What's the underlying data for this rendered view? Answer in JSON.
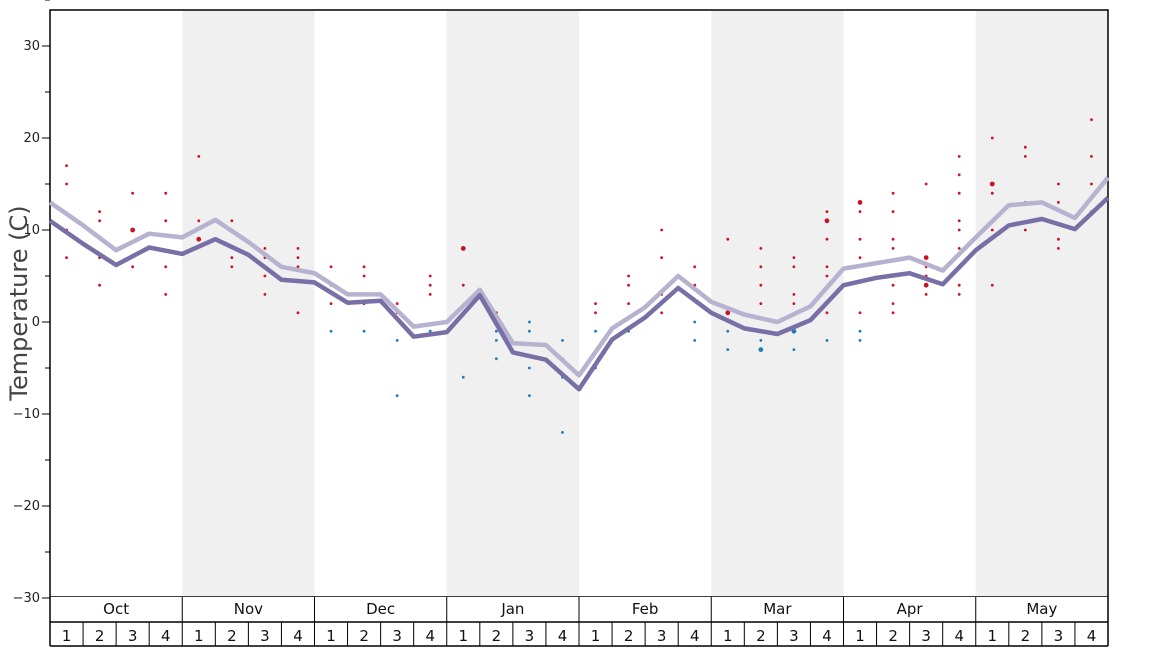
{
  "chart_data": {
    "type": "line",
    "title": "",
    "ylabel": "Temperature (C)",
    "xlabel": "",
    "ylim": [
      -30,
      35
    ],
    "yticks": [
      30,
      20,
      10,
      0,
      -10,
      -20,
      -30
    ],
    "months": [
      "Oct",
      "Nov",
      "Dec",
      "Jan",
      "Feb",
      "Mar",
      "Apr",
      "May"
    ],
    "weeks": [
      "1",
      "2",
      "3",
      "4"
    ],
    "shaded_months": [
      "Nov",
      "Jan",
      "Mar",
      "May"
    ],
    "shade_color": "#f0f0f0",
    "series": [
      {
        "name": "upper",
        "color": "#b6b2cf",
        "values": [
          13,
          10.5,
          7.8,
          9.6,
          9.2,
          11.1,
          8.7,
          6.0,
          5.3,
          3.0,
          3.0,
          -0.5,
          0,
          3.5,
          -2.3,
          -2.5,
          -5.8,
          -0.7,
          1.6,
          5.0,
          2.2,
          0.8,
          0,
          1.7,
          5.8,
          6.4,
          7.0,
          5.6,
          9.2,
          12.7,
          13.0,
          11.3,
          15.7
        ]
      },
      {
        "name": "lower",
        "color": "#776fa6",
        "values": [
          11,
          8.5,
          6.2,
          8.1,
          7.4,
          9.0,
          7.3,
          4.6,
          4.3,
          2.1,
          2.3,
          -1.6,
          -1.1,
          2.9,
          -3.3,
          -4.1,
          -7.3,
          -1.9,
          0.5,
          3.7,
          1.0,
          -0.7,
          -1.3,
          0.2,
          4.0,
          4.8,
          5.3,
          4.1,
          7.8,
          10.5,
          11.2,
          10.1,
          13.5
        ]
      }
    ],
    "points": [
      {
        "week": 0,
        "value": 17,
        "color": "#cc1122",
        "size": 1
      },
      {
        "week": 0,
        "value": 15,
        "color": "#cc1122",
        "size": 1
      },
      {
        "week": 0,
        "value": 10,
        "color": "#cc1122",
        "size": 1
      },
      {
        "week": 0,
        "value": 7,
        "color": "#cc1122",
        "size": 1
      },
      {
        "week": 1,
        "value": 12,
        "color": "#cc1122",
        "size": 1
      },
      {
        "week": 1,
        "value": 11,
        "color": "#cc1122",
        "size": 1
      },
      {
        "week": 1,
        "value": 7,
        "color": "#cc1122",
        "size": 1
      },
      {
        "week": 1,
        "value": 4,
        "color": "#cc1122",
        "size": 1
      },
      {
        "week": 2,
        "value": 14,
        "color": "#cc1122",
        "size": 1
      },
      {
        "week": 2,
        "value": 10,
        "color": "#cc1122",
        "size": 2
      },
      {
        "week": 2,
        "value": 6,
        "color": "#cc1122",
        "size": 1
      },
      {
        "week": 3,
        "value": 14,
        "color": "#cc1122",
        "size": 1
      },
      {
        "week": 3,
        "value": 11,
        "color": "#cc1122",
        "size": 1
      },
      {
        "week": 3,
        "value": 6,
        "color": "#cc1122",
        "size": 1
      },
      {
        "week": 3,
        "value": 3,
        "color": "#cc1122",
        "size": 1
      },
      {
        "week": 4,
        "value": 18,
        "color": "#cc1122",
        "size": 1
      },
      {
        "week": 4,
        "value": 11,
        "color": "#cc1122",
        "size": 1
      },
      {
        "week": 4,
        "value": 9,
        "color": "#cc1122",
        "size": 2
      },
      {
        "week": 5,
        "value": 11,
        "color": "#cc1122",
        "size": 1
      },
      {
        "week": 5,
        "value": 10,
        "color": "#cc1122",
        "size": 1
      },
      {
        "week": 5,
        "value": 7,
        "color": "#cc1122",
        "size": 1
      },
      {
        "week": 5,
        "value": 6,
        "color": "#cc1122",
        "size": 1
      },
      {
        "week": 6,
        "value": 8,
        "color": "#cc1122",
        "size": 1
      },
      {
        "week": 6,
        "value": 7,
        "color": "#cc1122",
        "size": 1
      },
      {
        "week": 6,
        "value": 5,
        "color": "#cc1122",
        "size": 1
      },
      {
        "week": 6,
        "value": 3,
        "color": "#cc1122",
        "size": 1
      },
      {
        "week": 7,
        "value": 8,
        "color": "#cc1122",
        "size": 1
      },
      {
        "week": 7,
        "value": 7,
        "color": "#cc1122",
        "size": 1
      },
      {
        "week": 7,
        "value": 6,
        "color": "#cc1122",
        "size": 1
      },
      {
        "week": 7,
        "value": 1,
        "color": "#cc1122",
        "size": 1
      },
      {
        "week": 8,
        "value": 6,
        "color": "#cc1122",
        "size": 1
      },
      {
        "week": 8,
        "value": 4,
        "color": "#cc1122",
        "size": 1
      },
      {
        "week": 8,
        "value": 2,
        "color": "#cc1122",
        "size": 1
      },
      {
        "week": 8,
        "value": -1,
        "color": "#1a7fb8",
        "size": 1
      },
      {
        "week": 9,
        "value": 6,
        "color": "#cc1122",
        "size": 1
      },
      {
        "week": 9,
        "value": 5,
        "color": "#cc1122",
        "size": 1
      },
      {
        "week": 9,
        "value": 2,
        "color": "#cc1122",
        "size": 1
      },
      {
        "week": 9,
        "value": -1,
        "color": "#1a7fb8",
        "size": 1
      },
      {
        "week": 10,
        "value": 2,
        "color": "#cc1122",
        "size": 1
      },
      {
        "week": 10,
        "value": 1,
        "color": "#cc1122",
        "size": 1
      },
      {
        "week": 10,
        "value": -2,
        "color": "#1a7fb8",
        "size": 1
      },
      {
        "week": 10,
        "value": -8,
        "color": "#1a7fb8",
        "size": 1
      },
      {
        "week": 11,
        "value": 5,
        "color": "#cc1122",
        "size": 1
      },
      {
        "week": 11,
        "value": 4,
        "color": "#cc1122",
        "size": 1
      },
      {
        "week": 11,
        "value": 3,
        "color": "#cc1122",
        "size": 1
      },
      {
        "week": 11,
        "value": -1,
        "color": "#1a7fb8",
        "size": 1
      },
      {
        "week": 12,
        "value": 8,
        "color": "#cc1122",
        "size": 2
      },
      {
        "week": 12,
        "value": 4,
        "color": "#cc1122",
        "size": 1
      },
      {
        "week": 12,
        "value": -6,
        "color": "#1a7fb8",
        "size": 1
      },
      {
        "week": 13,
        "value": 1,
        "color": "#cc1122",
        "size": 1
      },
      {
        "week": 13,
        "value": -1,
        "color": "#1a7fb8",
        "size": 1
      },
      {
        "week": 13,
        "value": -2,
        "color": "#1a7fb8",
        "size": 1
      },
      {
        "week": 13,
        "value": -4,
        "color": "#1a7fb8",
        "size": 1
      },
      {
        "week": 14,
        "value": 0,
        "color": "#1a7fb8",
        "size": 1
      },
      {
        "week": 14,
        "value": -1,
        "color": "#1a7fb8",
        "size": 1
      },
      {
        "week": 14,
        "value": -5,
        "color": "#1a7fb8",
        "size": 1
      },
      {
        "week": 14,
        "value": -8,
        "color": "#1a7fb8",
        "size": 1
      },
      {
        "week": 15,
        "value": -2,
        "color": "#1a7fb8",
        "size": 1
      },
      {
        "week": 15,
        "value": -4,
        "color": "#1a7fb8",
        "size": 1
      },
      {
        "week": 15,
        "value": -6,
        "color": "#1a7fb8",
        "size": 1
      },
      {
        "week": 15,
        "value": -12,
        "color": "#1a7fb8",
        "size": 1
      },
      {
        "week": 16,
        "value": 2,
        "color": "#cc1122",
        "size": 1
      },
      {
        "week": 16,
        "value": 1,
        "color": "#cc1122",
        "size": 1
      },
      {
        "week": 16,
        "value": -1,
        "color": "#1a7fb8",
        "size": 1
      },
      {
        "week": 16,
        "value": -5,
        "color": "#1a7fb8",
        "size": 1
      },
      {
        "week": 17,
        "value": 5,
        "color": "#cc1122",
        "size": 1
      },
      {
        "week": 17,
        "value": 4,
        "color": "#cc1122",
        "size": 1
      },
      {
        "week": 17,
        "value": 2,
        "color": "#cc1122",
        "size": 1
      },
      {
        "week": 17,
        "value": -1,
        "color": "#1a7fb8",
        "size": 1
      },
      {
        "week": 18,
        "value": 10,
        "color": "#cc1122",
        "size": 1
      },
      {
        "week": 18,
        "value": 7,
        "color": "#cc1122",
        "size": 1
      },
      {
        "week": 18,
        "value": 3,
        "color": "#cc1122",
        "size": 1
      },
      {
        "week": 18,
        "value": 1,
        "color": "#cc1122",
        "size": 1
      },
      {
        "week": 19,
        "value": 6,
        "color": "#cc1122",
        "size": 1
      },
      {
        "week": 19,
        "value": 4,
        "color": "#cc1122",
        "size": 1
      },
      {
        "week": 19,
        "value": 0,
        "color": "#1a7fb8",
        "size": 1
      },
      {
        "week": 19,
        "value": -2,
        "color": "#1a7fb8",
        "size": 1
      },
      {
        "week": 20,
        "value": 9,
        "color": "#cc1122",
        "size": 1
      },
      {
        "week": 20,
        "value": 1,
        "color": "#cc1122",
        "size": 2
      },
      {
        "week": 20,
        "value": -1,
        "color": "#1a7fb8",
        "size": 1
      },
      {
        "week": 20,
        "value": -3,
        "color": "#1a7fb8",
        "size": 1
      },
      {
        "week": 21,
        "value": 8,
        "color": "#cc1122",
        "size": 1
      },
      {
        "week": 21,
        "value": 6,
        "color": "#cc1122",
        "size": 1
      },
      {
        "week": 21,
        "value": 4,
        "color": "#cc1122",
        "size": 1
      },
      {
        "week": 21,
        "value": 2,
        "color": "#cc1122",
        "size": 1
      },
      {
        "week": 21,
        "value": -2,
        "color": "#1a7fb8",
        "size": 1
      },
      {
        "week": 21,
        "value": -3,
        "color": "#1a7fb8",
        "size": 2
      },
      {
        "week": 22,
        "value": 7,
        "color": "#cc1122",
        "size": 1
      },
      {
        "week": 22,
        "value": 6,
        "color": "#cc1122",
        "size": 1
      },
      {
        "week": 22,
        "value": 3,
        "color": "#cc1122",
        "size": 1
      },
      {
        "week": 22,
        "value": 2,
        "color": "#cc1122",
        "size": 1
      },
      {
        "week": 22,
        "value": -1,
        "color": "#1a7fb8",
        "size": 2
      },
      {
        "week": 22,
        "value": -3,
        "color": "#1a7fb8",
        "size": 1
      },
      {
        "week": 23,
        "value": 12,
        "color": "#cc1122",
        "size": 1
      },
      {
        "week": 23,
        "value": 11,
        "color": "#cc1122",
        "size": 2
      },
      {
        "week": 23,
        "value": 9,
        "color": "#cc1122",
        "size": 1
      },
      {
        "week": 23,
        "value": 6,
        "color": "#cc1122",
        "size": 1
      },
      {
        "week": 23,
        "value": 5,
        "color": "#cc1122",
        "size": 1
      },
      {
        "week": 23,
        "value": 1,
        "color": "#cc1122",
        "size": 1
      },
      {
        "week": 23,
        "value": -2,
        "color": "#1a7fb8",
        "size": 1
      },
      {
        "week": 24,
        "value": 13,
        "color": "#cc1122",
        "size": 2
      },
      {
        "week": 24,
        "value": 12,
        "color": "#cc1122",
        "size": 1
      },
      {
        "week": 24,
        "value": 9,
        "color": "#cc1122",
        "size": 1
      },
      {
        "week": 24,
        "value": 7,
        "color": "#cc1122",
        "size": 1
      },
      {
        "week": 24,
        "value": 1,
        "color": "#cc1122",
        "size": 1
      },
      {
        "week": 24,
        "value": -1,
        "color": "#1a7fb8",
        "size": 1
      },
      {
        "week": 24,
        "value": -2,
        "color": "#1a7fb8",
        "size": 1
      },
      {
        "week": 25,
        "value": 14,
        "color": "#cc1122",
        "size": 1
      },
      {
        "week": 25,
        "value": 12,
        "color": "#cc1122",
        "size": 1
      },
      {
        "week": 25,
        "value": 9,
        "color": "#cc1122",
        "size": 1
      },
      {
        "week": 25,
        "value": 8,
        "color": "#cc1122",
        "size": 1
      },
      {
        "week": 25,
        "value": 5,
        "color": "#cc1122",
        "size": 1
      },
      {
        "week": 25,
        "value": 4,
        "color": "#cc1122",
        "size": 1
      },
      {
        "week": 25,
        "value": 2,
        "color": "#cc1122",
        "size": 1
      },
      {
        "week": 25,
        "value": 1,
        "color": "#cc1122",
        "size": 1
      },
      {
        "week": 26,
        "value": 15,
        "color": "#cc1122",
        "size": 1
      },
      {
        "week": 26,
        "value": 7,
        "color": "#cc1122",
        "size": 2
      },
      {
        "week": 26,
        "value": 6,
        "color": "#cc1122",
        "size": 1
      },
      {
        "week": 26,
        "value": 5,
        "color": "#cc1122",
        "size": 1
      },
      {
        "week": 26,
        "value": 4,
        "color": "#cc1122",
        "size": 2
      },
      {
        "week": 26,
        "value": 3,
        "color": "#cc1122",
        "size": 1
      },
      {
        "week": 27,
        "value": 18,
        "color": "#cc1122",
        "size": 1
      },
      {
        "week": 27,
        "value": 16,
        "color": "#cc1122",
        "size": 1
      },
      {
        "week": 27,
        "value": 14,
        "color": "#cc1122",
        "size": 1
      },
      {
        "week": 27,
        "value": 11,
        "color": "#cc1122",
        "size": 1
      },
      {
        "week": 27,
        "value": 10,
        "color": "#cc1122",
        "size": 1
      },
      {
        "week": 27,
        "value": 8,
        "color": "#cc1122",
        "size": 1
      },
      {
        "week": 27,
        "value": 4,
        "color": "#cc1122",
        "size": 1
      },
      {
        "week": 27,
        "value": 3,
        "color": "#cc1122",
        "size": 1
      },
      {
        "week": 28,
        "value": 20,
        "color": "#cc1122",
        "size": 1
      },
      {
        "week": 28,
        "value": 15,
        "color": "#cc1122",
        "size": 2
      },
      {
        "week": 28,
        "value": 14,
        "color": "#cc1122",
        "size": 1
      },
      {
        "week": 28,
        "value": 10,
        "color": "#cc1122",
        "size": 1
      },
      {
        "week": 28,
        "value": 4,
        "color": "#cc1122",
        "size": 1
      },
      {
        "week": 29,
        "value": 19,
        "color": "#cc1122",
        "size": 1
      },
      {
        "week": 29,
        "value": 18,
        "color": "#cc1122",
        "size": 1
      },
      {
        "week": 29,
        "value": 13,
        "color": "#cc1122",
        "size": 1
      },
      {
        "week": 29,
        "value": 10,
        "color": "#cc1122",
        "size": 1
      },
      {
        "week": 30,
        "value": 15,
        "color": "#cc1122",
        "size": 1
      },
      {
        "week": 30,
        "value": 13,
        "color": "#cc1122",
        "size": 1
      },
      {
        "week": 30,
        "value": 9,
        "color": "#cc1122",
        "size": 1
      },
      {
        "week": 30,
        "value": 8,
        "color": "#cc1122",
        "size": 1
      },
      {
        "week": 31,
        "value": 22,
        "color": "#cc1122",
        "size": 1
      },
      {
        "week": 31,
        "value": 18,
        "color": "#cc1122",
        "size": 1
      },
      {
        "week": 31,
        "value": 15,
        "color": "#cc1122",
        "size": 1
      },
      {
        "week": 31,
        "value": 12,
        "color": "#cc1122",
        "size": 1
      }
    ]
  }
}
